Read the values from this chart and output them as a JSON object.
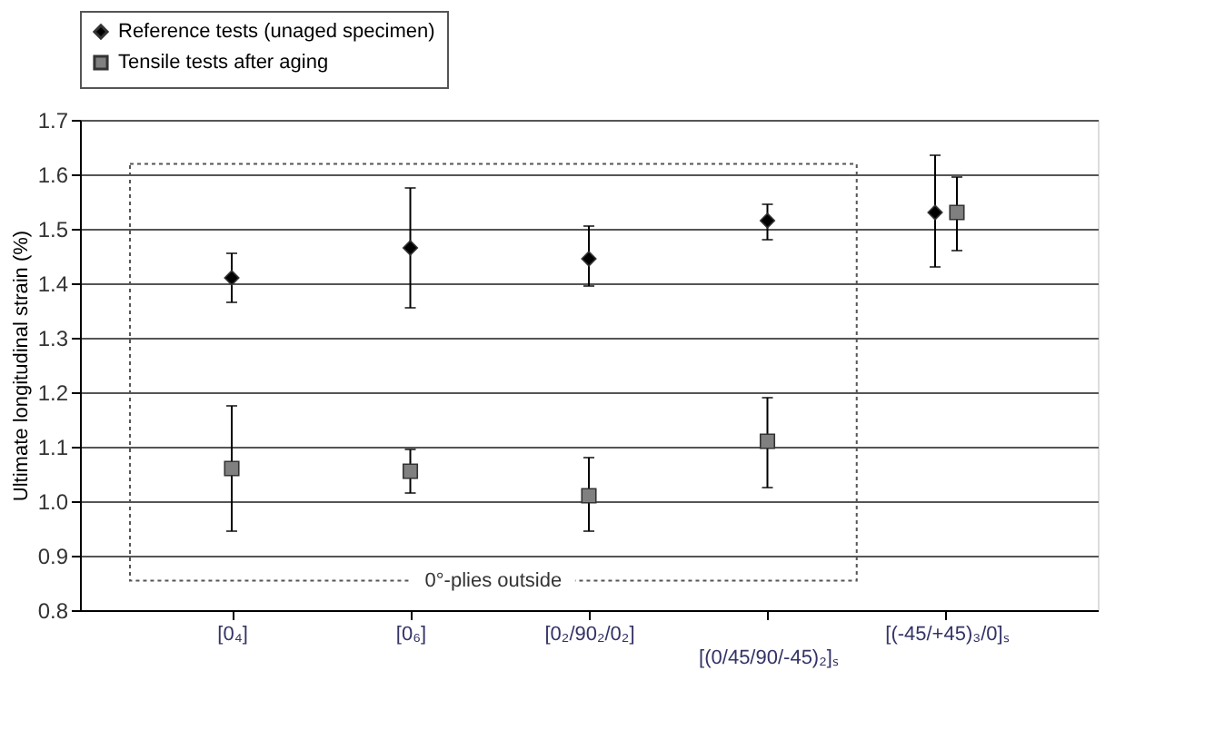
{
  "chart_data": {
    "type": "scatter",
    "categories": [
      "[0₄]",
      "[0₆]",
      "[0₂/90₂/0₂]",
      "[(0/45/90/-45)₂]ₛ",
      "[(-45/+45)₃/0]ₛ"
    ],
    "ylabel": "Ultimate longitudinal strain (%)",
    "ylim": [
      0.8,
      1.7
    ],
    "yticks": [
      0.8,
      0.9,
      {
        "value": 1.0,
        "label": "1.0"
      },
      1.1,
      1.2,
      1.3,
      1.4,
      1.5,
      1.6,
      1.7
    ],
    "grid": "y",
    "legend": "top",
    "series": [
      {
        "name": "Reference tests (unaged specimen)",
        "color": "#000000",
        "marker": "diamond",
        "values": [
          1.41,
          1.465,
          1.445,
          1.515,
          1.53
        ],
        "errors": [
          [
            1.365,
            1.455
          ],
          [
            1.355,
            1.575
          ],
          [
            1.395,
            1.505
          ],
          [
            1.48,
            1.545
          ],
          [
            1.43,
            1.635
          ]
        ]
      },
      {
        "name": "Tensile tests after aging",
        "color": "#808080",
        "marker": "square",
        "values": [
          1.06,
          1.055,
          1.01,
          1.11,
          1.53
        ],
        "errors": [
          [
            0.945,
            1.175
          ],
          [
            1.015,
            1.095
          ],
          [
            0.945,
            1.08
          ],
          [
            1.025,
            1.19
          ],
          [
            1.46,
            1.595
          ]
        ]
      }
    ],
    "annotations": [
      "0°-plies outside"
    ]
  }
}
